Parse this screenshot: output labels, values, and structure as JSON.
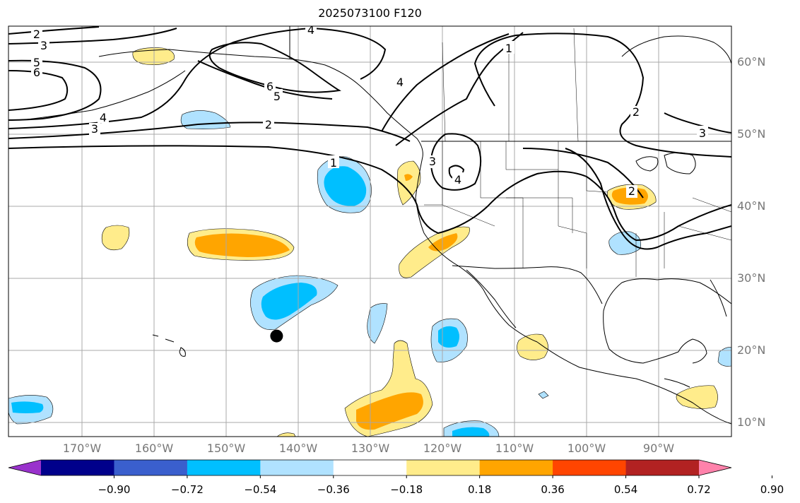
{
  "title": "2025073100 F120",
  "lat_labels": [
    {
      "text": "60°N",
      "lat": 60
    },
    {
      "text": "50°N",
      "lat": 50
    },
    {
      "text": "40°N",
      "lat": 40
    },
    {
      "text": "30°N",
      "lat": 30
    },
    {
      "text": "20°N",
      "lat": 20
    },
    {
      "text": "10°N",
      "lat": 10
    }
  ],
  "lon_labels": [
    {
      "text": "170°W",
      "lon": -170
    },
    {
      "text": "160°W",
      "lon": -160
    },
    {
      "text": "150°W",
      "lon": -150
    },
    {
      "text": "140°W",
      "lon": -140
    },
    {
      "text": "130°W",
      "lon": -130
    },
    {
      "text": "120°W",
      "lon": -120
    },
    {
      "text": "110°W",
      "lon": -110
    },
    {
      "text": "100°W",
      "lon": -100
    },
    {
      "text": "90°W",
      "lon": -90
    }
  ],
  "colorbar": {
    "colors": [
      "#9932cc",
      "#00008b",
      "#3a5fcd",
      "#00bfff",
      "#b0e2ff",
      "#ffffff",
      "#ffec8b",
      "#ffa500",
      "#ff4500",
      "#b22222",
      "#ff82ab"
    ],
    "ticks": [
      "−0.90",
      "−0.72",
      "−0.54",
      "−0.36",
      "−0.18",
      "0.18",
      "0.36",
      "0.54",
      "0.72",
      "0.90"
    ]
  },
  "contour_labels": [
    {
      "text": "2"
    },
    {
      "text": "3"
    },
    {
      "text": "5"
    },
    {
      "text": "6"
    },
    {
      "text": "4"
    },
    {
      "text": "4"
    },
    {
      "text": "3"
    },
    {
      "text": "6"
    },
    {
      "text": "5"
    },
    {
      "text": "2"
    },
    {
      "text": "1"
    },
    {
      "text": "3"
    },
    {
      "text": "4"
    },
    {
      "text": "4"
    },
    {
      "text": "2"
    },
    {
      "text": "3"
    },
    {
      "text": "1"
    },
    {
      "text": "2"
    }
  ],
  "marker": {
    "lon": -143,
    "lat": 22
  }
}
